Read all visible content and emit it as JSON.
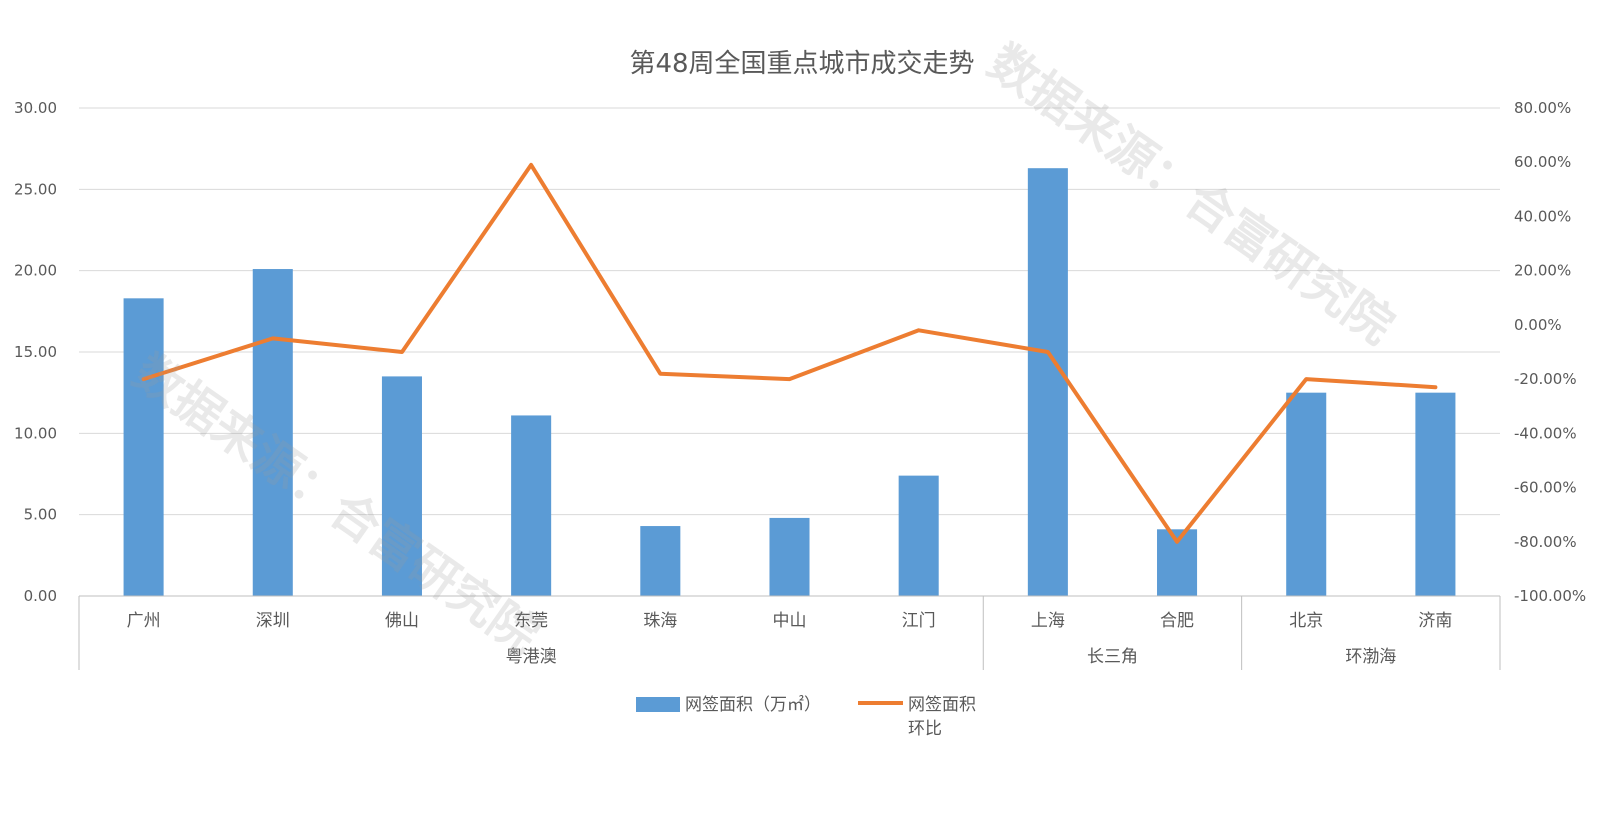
{
  "chart_data": {
    "type": "bar",
    "title": "第48周全国重点城市成交走势",
    "categories": [
      "广州",
      "深圳",
      "佛山",
      "东莞",
      "珠海",
      "中山",
      "江门",
      "上海",
      "合肥",
      "北京",
      "济南"
    ],
    "groups": [
      {
        "label": "粤港澳",
        "categories": [
          "广州",
          "深圳",
          "佛山",
          "东莞",
          "珠海",
          "中山",
          "江门"
        ]
      },
      {
        "label": "长三角",
        "categories": [
          "上海",
          "合肥"
        ]
      },
      {
        "label": "环渤海",
        "categories": [
          "北京",
          "济南"
        ]
      }
    ],
    "series": [
      {
        "name": "网签面积（万㎡）",
        "type": "bar",
        "axis": "left",
        "color": "#5b9bd5",
        "values": [
          18.3,
          20.1,
          13.5,
          11.1,
          4.3,
          4.8,
          7.4,
          26.3,
          4.1,
          12.5,
          12.5
        ]
      },
      {
        "name": "网签面积环比",
        "type": "line",
        "axis": "right",
        "color": "#ed7d31",
        "values": [
          -20.0,
          -5.0,
          -10.0,
          59.0,
          -18.0,
          -20.0,
          -2.0,
          -10.0,
          -80.0,
          -20.0,
          -23.0
        ]
      }
    ],
    "y_left": {
      "min": 0,
      "max": 30,
      "step": 5,
      "ticks": [
        "0.00",
        "5.00",
        "10.00",
        "15.00",
        "20.00",
        "25.00",
        "30.00"
      ]
    },
    "y_right": {
      "min": -100,
      "max": 80,
      "step": 20,
      "ticks": [
        "-100.00%",
        "-80.00%",
        "-60.00%",
        "-40.00%",
        "-20.00%",
        "0.00%",
        "20.00%",
        "40.00%",
        "60.00%",
        "80.00%"
      ]
    },
    "grid": true,
    "legend": "bottom",
    "legend_items": [
      {
        "label": "网签面积（万㎡）"
      },
      {
        "label_line1": "网签面积",
        "label_line2": "环比"
      }
    ]
  },
  "watermark": {
    "text": "数据来源：合富研究院"
  }
}
